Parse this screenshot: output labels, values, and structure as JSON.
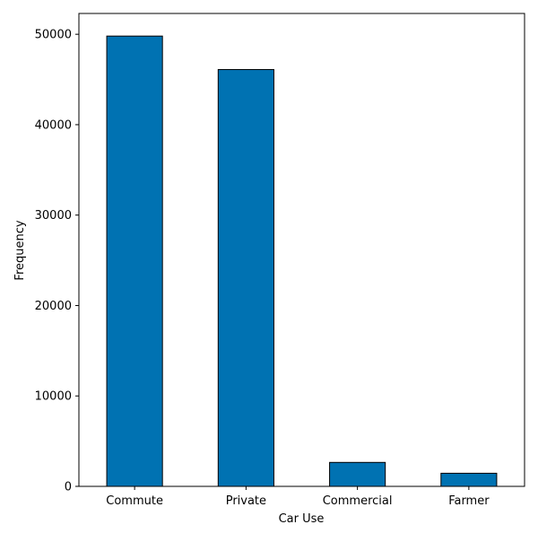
{
  "chart_data": {
    "type": "bar",
    "categories": [
      "Commute",
      "Private",
      "Commercial",
      "Farmer"
    ],
    "values": [
      49800,
      46100,
      2650,
      1450
    ],
    "xlabel": "Car Use",
    "ylabel": "Frequency",
    "ylim": [
      0,
      52300
    ],
    "yticks": [
      0,
      10000,
      20000,
      30000,
      40000,
      50000
    ],
    "bar_color": "#0072b2",
    "edge_color": "#000000",
    "grid": false,
    "legend": "none"
  }
}
